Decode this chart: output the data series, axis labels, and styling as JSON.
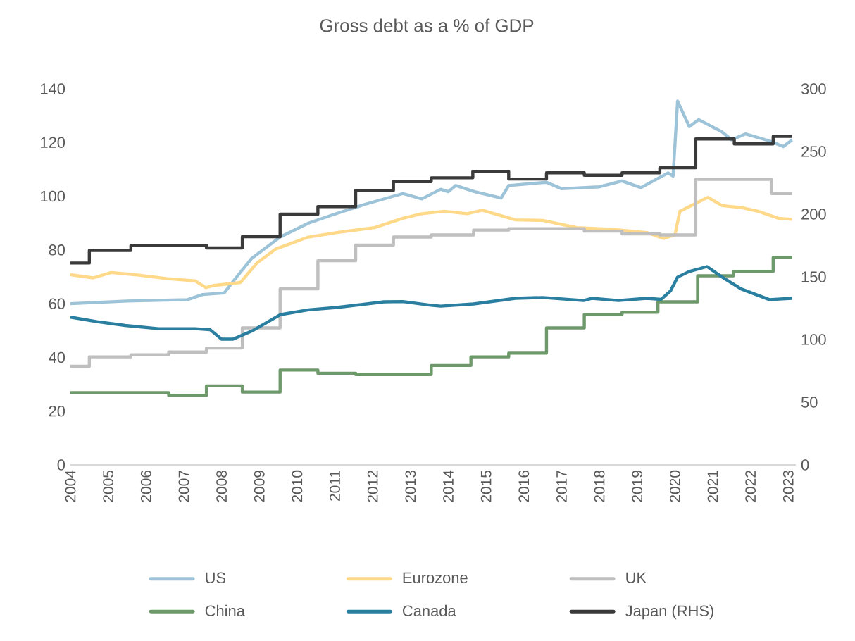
{
  "chart_data": {
    "type": "line",
    "title": "Gross debt as a % of GDP",
    "xlim": [
      2004,
      2023.2
    ],
    "xticks": [
      2004,
      2005,
      2006,
      2007,
      2008,
      2009,
      2010,
      2011,
      2012,
      2013,
      2014,
      2015,
      2016,
      2017,
      2018,
      2019,
      2020,
      2021,
      2022,
      2023
    ],
    "ylim": [
      0,
      140
    ],
    "yticks": [
      0,
      20,
      40,
      60,
      80,
      100,
      120,
      140
    ],
    "y2lim": [
      0,
      300
    ],
    "y2ticks": [
      0,
      50,
      100,
      150,
      200,
      250,
      300
    ],
    "legend": "bottom",
    "grid": false,
    "series": [
      {
        "name": "US",
        "color": "#9dc3d8",
        "x": [
          2004.0,
          2005.5,
          2007.1,
          2007.5,
          2008.07,
          2008.38,
          2008.8,
          2009.55,
          2010.3,
          2011.05,
          2011.8,
          2012.8,
          2013.3,
          2013.8,
          2014.0,
          2014.2,
          2014.7,
          2015.4,
          2015.6,
          2016.6,
          2017.0,
          2018.0,
          2018.6,
          2019.1,
          2019.82,
          2019.95,
          2020.07,
          2020.38,
          2020.63,
          2021.24,
          2021.5,
          2021.87,
          2022.5,
          2022.87,
          2023.1
        ],
        "values": [
          60,
          61,
          61.5,
          63.4,
          64,
          69.6,
          76.9,
          84.8,
          90,
          93.6,
          97,
          101,
          99,
          102.6,
          101.7,
          104,
          101.7,
          99.3,
          104,
          105.2,
          102.8,
          103.5,
          105.7,
          103.2,
          108.7,
          107.5,
          135.4,
          125.9,
          128.5,
          124,
          121,
          123.2,
          120.6,
          118.5,
          121
        ]
      },
      {
        "name": "Eurozone",
        "color": "#ffd98a",
        "x": [
          2004.0,
          2004.6,
          2005.08,
          2005.7,
          2006.57,
          2007.3,
          2007.58,
          2007.8,
          2008.5,
          2008.94,
          2009.44,
          2010.3,
          2011.05,
          2012.05,
          2012.8,
          2013.3,
          2013.9,
          2014.5,
          2014.9,
          2015.78,
          2016.5,
          2017.4,
          2018.3,
          2019.26,
          2019.7,
          2020.0,
          2020.13,
          2020.5,
          2020.87,
          2021.25,
          2021.75,
          2022.2,
          2022.74,
          2023.1
        ],
        "values": [
          70.8,
          69.6,
          71.6,
          70.8,
          69.3,
          68.5,
          66,
          66.8,
          67.9,
          75.2,
          80.4,
          84.8,
          86.5,
          88.3,
          91.8,
          93.5,
          94.4,
          93.5,
          94.8,
          91.2,
          91,
          88.3,
          87.7,
          86.5,
          84.3,
          85.6,
          94.4,
          97,
          99.6,
          96.5,
          95.8,
          94.4,
          91.8,
          91.4
        ]
      },
      {
        "name": "UK",
        "color": "#bfbfbf",
        "type": "step",
        "x": [
          2004.0,
          2004.5,
          2005.6,
          2006.6,
          2007.6,
          2008.55,
          2009.55,
          2010.55,
          2011.55,
          2012.55,
          2013.55,
          2014.67,
          2015.6,
          2017.6,
          2018.6,
          2019.6,
          2020.55,
          2022.55,
          2023.1
        ],
        "values": [
          36.7,
          40.2,
          41,
          42,
          43.5,
          51,
          65.5,
          76,
          81.8,
          84.8,
          85.6,
          87.4,
          87.9,
          87,
          86,
          85.6,
          106.3,
          101,
          101
        ]
      },
      {
        "name": "China",
        "color": "#6e9a6b",
        "type": "step",
        "x": [
          2004.0,
          2006.6,
          2007.6,
          2008.55,
          2009.55,
          2010.55,
          2011.55,
          2013.55,
          2014.6,
          2015.6,
          2016.6,
          2017.6,
          2018.6,
          2019.55,
          2020.6,
          2021.55,
          2022.6,
          2023.1
        ],
        "values": [
          26.9,
          25.9,
          29.4,
          27.1,
          35.3,
          34.1,
          33.6,
          37,
          40.2,
          41.6,
          51,
          56,
          56.8,
          60.7,
          70.4,
          72,
          77.2,
          77.2
        ]
      },
      {
        "name": "Canada",
        "color": "#2a7fa0",
        "x": [
          2004.0,
          2004.7,
          2005.45,
          2006.33,
          2007.3,
          2007.7,
          2008.0,
          2008.3,
          2008.8,
          2009.55,
          2010.3,
          2011.05,
          2012.3,
          2012.8,
          2013.54,
          2013.8,
          2014.67,
          2015.78,
          2016.5,
          2017.58,
          2017.8,
          2018.5,
          2019.26,
          2019.63,
          2019.88,
          2020.07,
          2020.38,
          2020.85,
          2021.25,
          2021.75,
          2022.5,
          2023.1
        ],
        "values": [
          55,
          53.3,
          51.9,
          50.7,
          50.7,
          50.3,
          46.8,
          46.8,
          49.8,
          55.9,
          57.7,
          58.6,
          60.7,
          60.8,
          59.4,
          59.1,
          59.9,
          62,
          62.3,
          61.2,
          62,
          61.2,
          62,
          61.6,
          64.7,
          69.9,
          72,
          73.8,
          69.9,
          65.5,
          61.5,
          62
        ]
      },
      {
        "name": "Japan (RHS)",
        "color": "#3a3a3a",
        "type": "step",
        "axis": "y2",
        "x": [
          2004.0,
          2004.5,
          2005.6,
          2007.6,
          2008.55,
          2009.55,
          2010.55,
          2011.55,
          2012.55,
          2013.55,
          2014.65,
          2015.6,
          2016.6,
          2017.6,
          2018.6,
          2019.6,
          2020.55,
          2021.57,
          2022.6,
          2023.1
        ],
        "values": [
          161,
          171,
          175,
          173,
          182,
          200,
          206,
          219,
          226,
          229,
          234,
          228,
          233,
          231,
          233,
          237,
          260,
          256,
          262,
          262
        ]
      }
    ]
  }
}
